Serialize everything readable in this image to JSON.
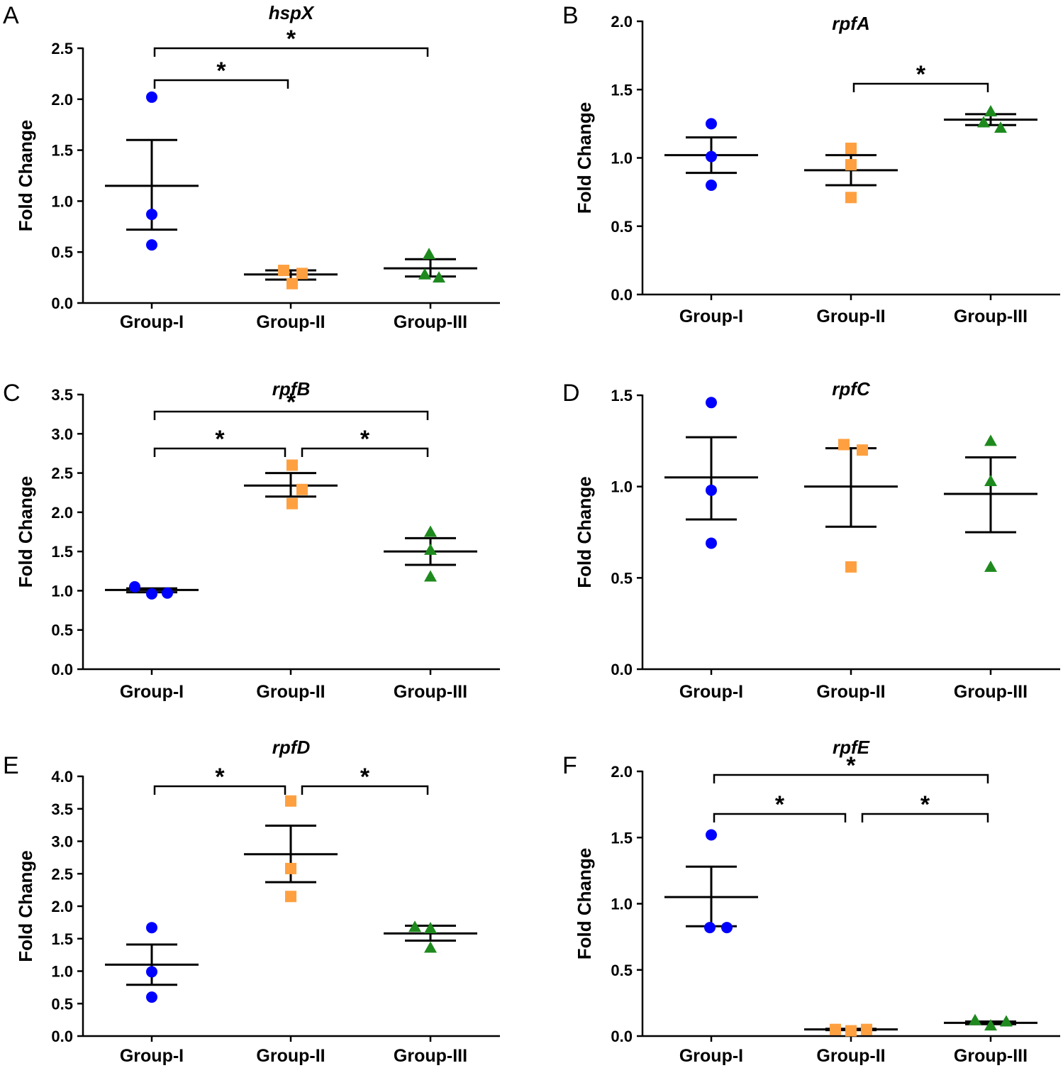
{
  "colors": {
    "group1": "#0000ff",
    "group2": "#ffa040",
    "group3": "#1e8a1e"
  },
  "chart_data": [
    {
      "panel": "A",
      "type": "scatter",
      "title": "hspX",
      "ylabel": "Fold Change",
      "categories": [
        "Group-I",
        "Group-II",
        "Group-III"
      ],
      "ylim": [
        0,
        2.5
      ],
      "yticks": [
        "0.0",
        "0.5",
        "1.0",
        "1.5",
        "2.0",
        "2.5"
      ],
      "series": [
        {
          "name": "Group-I",
          "marker": "circle",
          "points": [
            2.02,
            0.87,
            0.57
          ],
          "mean": 1.15,
          "sem": [
            0.72,
            1.6
          ]
        },
        {
          "name": "Group-II",
          "marker": "square",
          "points": [
            0.32,
            0.29,
            0.19
          ],
          "mean": 0.28,
          "sem": [
            0.23,
            0.32
          ]
        },
        {
          "name": "Group-III",
          "marker": "triangle",
          "points": [
            0.48,
            0.28,
            0.25
          ],
          "mean": 0.34,
          "sem": [
            0.26,
            0.43
          ]
        }
      ],
      "significance": [
        {
          "from": 0,
          "to": 1,
          "label": "*"
        },
        {
          "from": 0,
          "to": 2,
          "label": "*"
        }
      ]
    },
    {
      "panel": "B",
      "type": "scatter",
      "title": "rpfA",
      "ylabel": "Fold Change",
      "categories": [
        "Group-I",
        "Group-II",
        "Group-III"
      ],
      "ylim": [
        0,
        2.0
      ],
      "yticks": [
        "0.0",
        "0.5",
        "1.0",
        "1.5",
        "2.0"
      ],
      "series": [
        {
          "name": "Group-I",
          "marker": "circle",
          "points": [
            1.25,
            1.01,
            0.8
          ],
          "mean": 1.02,
          "sem": [
            0.89,
            1.15
          ]
        },
        {
          "name": "Group-II",
          "marker": "square",
          "points": [
            1.07,
            0.95,
            0.71
          ],
          "mean": 0.91,
          "sem": [
            0.8,
            1.02
          ]
        },
        {
          "name": "Group-III",
          "marker": "triangle",
          "points": [
            1.34,
            1.26,
            1.22
          ],
          "mean": 1.28,
          "sem": [
            1.24,
            1.32
          ]
        }
      ],
      "significance": [
        {
          "from": 1,
          "to": 2,
          "label": "*"
        }
      ]
    },
    {
      "panel": "C",
      "type": "scatter",
      "title": "rpfB",
      "ylabel": "Fold Change",
      "categories": [
        "Group-I",
        "Group-II",
        "Group-III"
      ],
      "ylim": [
        0,
        3.5
      ],
      "yticks": [
        "0.0",
        "0.5",
        "1.0",
        "1.5",
        "2.0",
        "2.5",
        "3.0",
        "3.5"
      ],
      "series": [
        {
          "name": "Group-I",
          "marker": "circle",
          "points": [
            1.05,
            0.96,
            0.97
          ],
          "mean": 1.01,
          "sem": [
            0.98,
            1.03
          ]
        },
        {
          "name": "Group-II",
          "marker": "square",
          "points": [
            2.6,
            2.29,
            2.11
          ],
          "mean": 2.34,
          "sem": [
            2.2,
            2.5
          ]
        },
        {
          "name": "Group-III",
          "marker": "triangle",
          "points": [
            1.75,
            1.52,
            1.18
          ],
          "mean": 1.5,
          "sem": [
            1.33,
            1.67
          ]
        }
      ],
      "significance": [
        {
          "from": 0,
          "to": 1,
          "label": "*"
        },
        {
          "from": 1,
          "to": 2,
          "label": "*"
        },
        {
          "from": 0,
          "to": 2,
          "label": "*"
        }
      ]
    },
    {
      "panel": "D",
      "type": "scatter",
      "title": "rpfC",
      "ylabel": "Fold Change",
      "categories": [
        "Group-I",
        "Group-II",
        "Group-III"
      ],
      "ylim": [
        0,
        1.5
      ],
      "yticks": [
        "0.0",
        "0.5",
        "1.0",
        "1.5"
      ],
      "series": [
        {
          "name": "Group-I",
          "marker": "circle",
          "points": [
            1.46,
            0.98,
            0.69
          ],
          "mean": 1.05,
          "sem": [
            0.82,
            1.27
          ]
        },
        {
          "name": "Group-II",
          "marker": "square",
          "points": [
            1.23,
            1.2,
            0.56
          ],
          "mean": 1.0,
          "sem": [
            0.78,
            1.21
          ]
        },
        {
          "name": "Group-III",
          "marker": "triangle",
          "points": [
            1.25,
            1.03,
            0.56
          ],
          "mean": 0.96,
          "sem": [
            0.75,
            1.16
          ]
        }
      ],
      "significance": []
    },
    {
      "panel": "E",
      "type": "scatter",
      "title": "rpfD",
      "ylabel": "Fold Change",
      "categories": [
        "Group-I",
        "Group-II",
        "Group-III"
      ],
      "ylim": [
        0,
        4.0
      ],
      "yticks": [
        "0.0",
        "0.5",
        "1.0",
        "1.5",
        "2.0",
        "2.5",
        "3.0",
        "3.5",
        "4.0"
      ],
      "series": [
        {
          "name": "Group-I",
          "marker": "circle",
          "points": [
            1.67,
            0.99,
            0.6
          ],
          "mean": 1.1,
          "sem": [
            0.79,
            1.41
          ]
        },
        {
          "name": "Group-II",
          "marker": "square",
          "points": [
            3.62,
            2.58,
            2.15
          ],
          "mean": 2.8,
          "sem": [
            2.37,
            3.24
          ]
        },
        {
          "name": "Group-III",
          "marker": "triangle",
          "points": [
            1.68,
            1.66,
            1.36
          ],
          "mean": 1.58,
          "sem": [
            1.47,
            1.7
          ]
        }
      ],
      "significance": [
        {
          "from": 0,
          "to": 1,
          "label": "*"
        },
        {
          "from": 1,
          "to": 2,
          "label": "*"
        }
      ]
    },
    {
      "panel": "F",
      "type": "scatter",
      "title": "rpfE",
      "ylabel": "Fold Change",
      "categories": [
        "Group-I",
        "Group-II",
        "Group-III"
      ],
      "ylim": [
        0,
        2.0
      ],
      "yticks": [
        "0.0",
        "0.5",
        "1.0",
        "1.5",
        "2.0"
      ],
      "series": [
        {
          "name": "Group-I",
          "marker": "circle",
          "points": [
            1.52,
            0.82,
            0.82
          ],
          "mean": 1.05,
          "sem": [
            0.83,
            1.28
          ]
        },
        {
          "name": "Group-II",
          "marker": "square",
          "points": [
            0.05,
            0.04,
            0.05
          ],
          "mean": 0.05,
          "sem": [
            0.045,
            0.055
          ]
        },
        {
          "name": "Group-III",
          "marker": "triangle",
          "points": [
            0.12,
            0.08,
            0.11
          ],
          "mean": 0.1,
          "sem": [
            0.09,
            0.11
          ]
        }
      ],
      "significance": [
        {
          "from": 0,
          "to": 1,
          "label": "*"
        },
        {
          "from": 1,
          "to": 2,
          "label": "*"
        },
        {
          "from": 0,
          "to": 2,
          "label": "*"
        }
      ]
    }
  ]
}
